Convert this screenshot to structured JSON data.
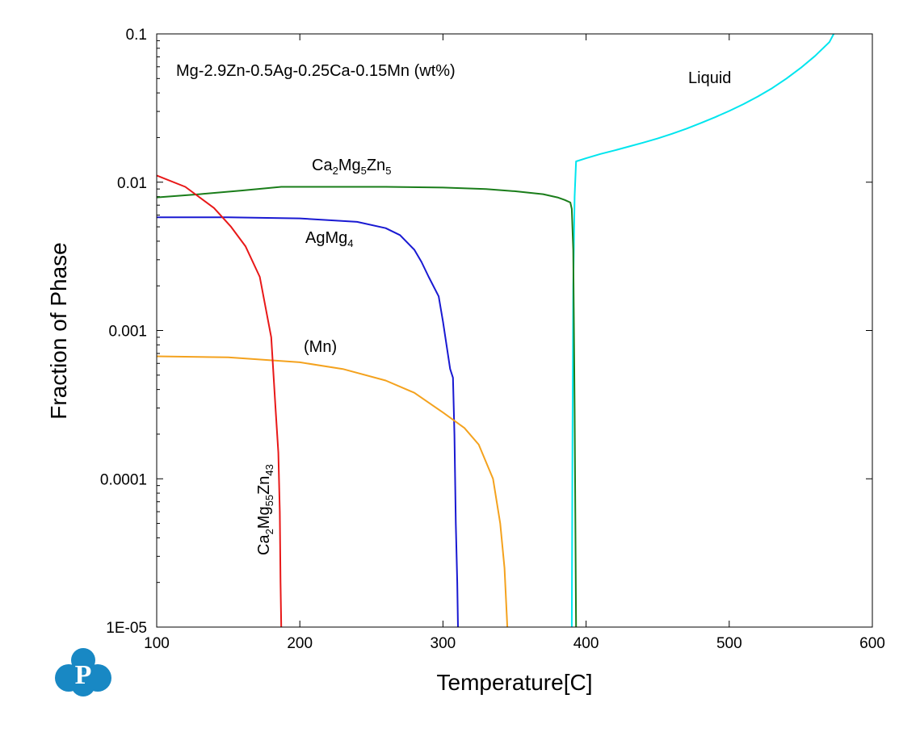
{
  "chart_data": {
    "type": "line",
    "title": "",
    "annotation": "Mg-2.9Zn-0.5Ag-0.25Ca-0.15Mn (wt%)",
    "xlabel": "Temperature[C]",
    "ylabel": "Fraction of Phase",
    "xlim": [
      100,
      600
    ],
    "ylim": [
      1e-05,
      0.1
    ],
    "y_scale": "log",
    "x_ticks": [
      "100",
      "200",
      "300",
      "400",
      "500",
      "600"
    ],
    "y_ticks": [
      "1E-05",
      "0.0001",
      "0.001",
      "0.01",
      "0.1"
    ],
    "grid": false,
    "legend": "none",
    "series": [
      {
        "label_parts": [
          [
            "Liquid",
            ""
          ]
        ],
        "color": "#00e5ee",
        "x": [
          390.0,
          390.5,
          391.0,
          392.0,
          393.0,
          400,
          410,
          420,
          430,
          440,
          450,
          460,
          470,
          480,
          490,
          500,
          510,
          520,
          530,
          540,
          550,
          560,
          570,
          573
        ],
        "y": [
          1e-05,
          0.0002,
          0.002,
          0.008,
          0.0138,
          0.0145,
          0.0155,
          0.0164,
          0.0174,
          0.0185,
          0.0197,
          0.0212,
          0.0229,
          0.025,
          0.0274,
          0.0302,
          0.0336,
          0.0378,
          0.0431,
          0.05,
          0.059,
          0.071,
          0.088,
          0.1
        ]
      },
      {
        "label_parts": [
          [
            "Ca",
            ""
          ],
          [
            "2",
            "sub"
          ],
          [
            "Mg",
            ""
          ],
          [
            "5",
            "sub"
          ],
          [
            "Zn",
            ""
          ],
          [
            "5",
            "sub"
          ]
        ],
        "color": "#1a7d1a",
        "x": [
          100,
          130,
          160,
          187,
          220,
          260,
          300,
          330,
          350,
          370,
          380,
          385,
          389,
          390,
          391,
          392,
          393
        ],
        "y": [
          0.0079,
          0.0083,
          0.0088,
          0.0093,
          0.0093,
          0.0093,
          0.0092,
          0.009,
          0.0087,
          0.0083,
          0.0079,
          0.0076,
          0.0073,
          0.0066,
          0.0035,
          0.0003,
          1e-05
        ]
      },
      {
        "label_parts": [
          [
            "AgMg",
            ""
          ],
          [
            "4",
            "sub"
          ]
        ],
        "color": "#1919d2",
        "x": [
          100,
          150,
          200,
          240,
          260,
          270,
          280,
          285,
          290,
          297,
          300,
          305,
          307,
          308,
          309,
          310,
          310.5
        ],
        "y": [
          0.0058,
          0.0058,
          0.0057,
          0.0054,
          0.0049,
          0.0044,
          0.0035,
          0.0029,
          0.0023,
          0.0017,
          0.00115,
          0.00055,
          0.00048,
          0.0002,
          5e-05,
          2e-05,
          1e-05
        ]
      },
      {
        "label_parts": [
          [
            "(Mn)",
            ""
          ]
        ],
        "color": "#f4a21e",
        "x": [
          100,
          150,
          200,
          230,
          260,
          280,
          300,
          315,
          325,
          335,
          340,
          343,
          345
        ],
        "y": [
          0.00067,
          0.00066,
          0.00061,
          0.00055,
          0.00046,
          0.00038,
          0.00028,
          0.00022,
          0.00017,
          0.0001,
          5e-05,
          2.5e-05,
          1e-05
        ]
      },
      {
        "label_parts": [
          [
            "Ca",
            ""
          ],
          [
            "2",
            "sub"
          ],
          [
            "Mg",
            ""
          ],
          [
            "55",
            "sub"
          ],
          [
            "Zn",
            ""
          ],
          [
            "43",
            "sub"
          ]
        ],
        "color": "#e81818",
        "x": [
          100,
          120,
          140,
          152,
          162,
          172,
          180,
          183,
          185,
          186,
          186.5,
          187
        ],
        "y": [
          0.0111,
          0.0093,
          0.0067,
          0.005,
          0.0037,
          0.0023,
          0.0009,
          0.0003,
          0.00015,
          6e-05,
          2e-05,
          1e-05
        ]
      }
    ]
  },
  "logo": {
    "name": "pandat-logo",
    "letter": "P",
    "color": "#1888c4"
  }
}
